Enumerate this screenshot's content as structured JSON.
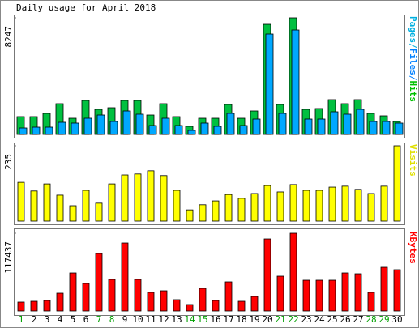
{
  "chart_data": {
    "type": "bar",
    "title": "Daily usage for April 2018",
    "categories": [
      "1",
      "2",
      "3",
      "4",
      "5",
      "6",
      "7",
      "8",
      "9",
      "10",
      "11",
      "12",
      "13",
      "14",
      "15",
      "16",
      "17",
      "18",
      "19",
      "20",
      "21",
      "22",
      "23",
      "24",
      "25",
      "26",
      "27",
      "28",
      "29",
      "30"
    ],
    "category_colors": [
      "#00a000",
      "#000000",
      "#000000",
      "#000000",
      "#000000",
      "#000000",
      "#00a000",
      "#00a000",
      "#000000",
      "#000000",
      "#000000",
      "#000000",
      "#000000",
      "#00a000",
      "#00a000",
      "#000000",
      "#000000",
      "#000000",
      "#000000",
      "#000000",
      "#00a000",
      "#00a000",
      "#000000",
      "#000000",
      "#000000",
      "#000000",
      "#000000",
      "#00a000",
      "#00a000",
      "#000000"
    ],
    "panels": [
      {
        "ylim": [
          0,
          8247
        ],
        "yticks": [
          8247
        ],
        "label_parts": [
          {
            "text": "Pages/",
            "color": "#00b0e0"
          },
          {
            "text": "Files/",
            "color": "#0080ff"
          },
          {
            "text": "Hits",
            "color": "#00c000"
          }
        ],
        "series": [
          {
            "name": "Hits",
            "color": "#00c040",
            "values": [
              1260,
              1260,
              1489,
              2176,
              1145,
              2405,
              1775,
              1890,
              2405,
              2405,
              1374,
              2176,
              1260,
              573,
              1145,
              1145,
              2119,
              1145,
              1661,
              7788,
              2119,
              8247,
              1775,
              1833,
              2462,
              2176,
              2462,
              1489,
              1317,
              916
            ]
          },
          {
            "name": "Files",
            "color": "#00a8ff",
            "values": [
              458,
              515,
              515,
              859,
              802,
              1145,
              1374,
              916,
              1661,
              1432,
              630,
              1145,
              630,
              286,
              802,
              573,
              1489,
              630,
              1088,
              7101,
              1489,
              7387,
              1088,
              1088,
              1604,
              1432,
              1775,
              916,
              916,
              802
            ]
          }
        ]
      },
      {
        "ylim": [
          0,
          235
        ],
        "yticks": [
          235
        ],
        "label_parts": [
          {
            "text": "Visits",
            "color": "#e0e000"
          }
        ],
        "series": [
          {
            "name": "Visits",
            "color": "#ffff00",
            "values": [
              121,
              94,
              116,
              81,
              48,
              96,
              56,
              116,
              144,
              147,
              157,
              142,
              96,
              35,
              51,
              63,
              83,
              71,
              86,
              111,
              91,
              114,
              96,
              96,
              106,
              109,
              99,
              86,
              109,
              235
            ]
          }
        ]
      },
      {
        "ylim": [
          0,
          117437
        ],
        "yticks": [
          117437
        ],
        "label_parts": [
          {
            "text": "KBytes",
            "color": "#ff0000"
          }
        ],
        "series": [
          {
            "name": "KBytes",
            "color": "#ff0000",
            "values": [
              13453,
              14676,
              15899,
              26906,
              57481,
              41582,
              86833,
              47697,
              102732,
              47697,
              28129,
              30575,
              17122,
              9784,
              34244,
              15899,
              44028,
              14676,
              22014,
              108847,
              52589,
              117437,
              46474,
              46474,
              46474,
              57481,
              56258,
              28129,
              66042,
              62373
            ]
          }
        ]
      }
    ]
  }
}
